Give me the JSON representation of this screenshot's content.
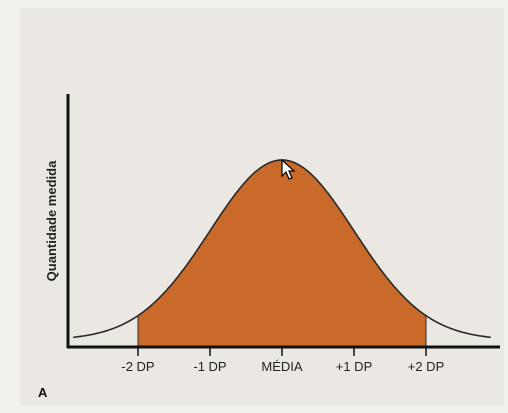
{
  "chart_data": {
    "type": "area",
    "curve": "normal distribution",
    "ylabel": "Quantidade medida",
    "x_ticks": [
      "-2 DP",
      "-1 DP",
      "MÉDIA",
      "+1 DP",
      "+2 DP"
    ],
    "x_tick_values": [
      -2,
      -1,
      0,
      1,
      2
    ],
    "shaded_range": [
      -2,
      2
    ],
    "xlim": [
      -2.9,
      2.9
    ],
    "panel_label": "A"
  },
  "colors": {
    "fill": "#c96a2b",
    "curve": "#2a2a2a",
    "axis": "#111111",
    "background": "#ebe8e3"
  },
  "cursor": "arrow-cursor"
}
